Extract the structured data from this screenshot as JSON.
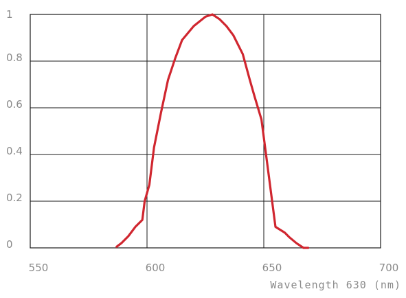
{
  "chart_data": {
    "type": "line",
    "xlabel": "Wavelength 630  (nm)",
    "ylabel": "",
    "title": "",
    "xlim": [
      550,
      700
    ],
    "ylim": [
      0,
      1
    ],
    "x_ticks": [
      550,
      600,
      650,
      700
    ],
    "x_tick_labels": [
      "550",
      "600",
      "650",
      "700"
    ],
    "y_ticks": [
      0,
      0.2,
      0.4,
      0.6,
      0.8,
      1
    ],
    "y_tick_labels": [
      "0",
      "0.2",
      "0.4",
      "0.6",
      "0.8",
      "1"
    ],
    "grid": true,
    "series": [
      {
        "color": "#d0262f",
        "x": [
          587,
          589,
          592,
          595,
          598,
          599,
          601,
          603,
          606,
          609,
          612,
          615,
          620,
          625,
          628,
          631,
          634,
          637,
          641,
          644,
          646,
          649,
          652,
          655,
          659,
          661,
          664,
          667,
          669
        ],
        "y": [
          0.005,
          0.02,
          0.05,
          0.09,
          0.12,
          0.2,
          0.27,
          0.43,
          0.58,
          0.72,
          0.81,
          0.89,
          0.95,
          0.99,
          1.0,
          0.98,
          0.95,
          0.91,
          0.83,
          0.72,
          0.65,
          0.55,
          0.32,
          0.09,
          0.065,
          0.045,
          0.02,
          0.0,
          0.0
        ]
      }
    ]
  }
}
